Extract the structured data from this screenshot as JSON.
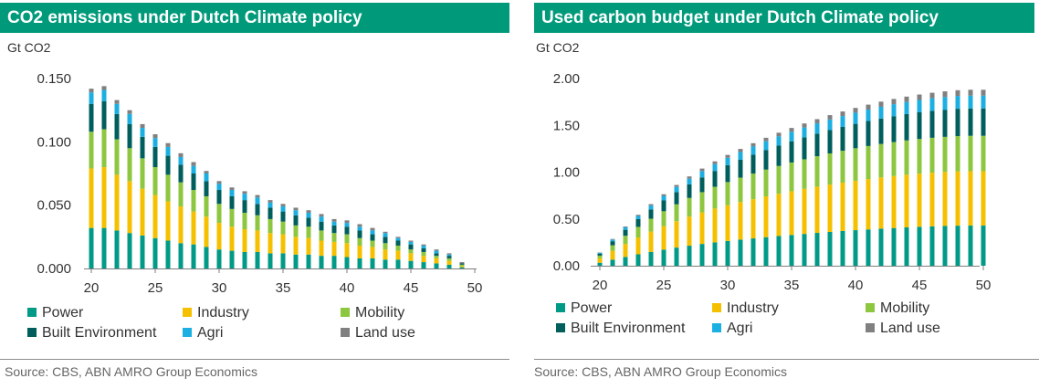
{
  "colors": {
    "title_bar": "#009A7B",
    "Power": "#009A87",
    "Industry": "#F5C000",
    "Mobility": "#8DC63F",
    "Built Environment": "#005E5D",
    "Agri": "#1CAFE2",
    "Land use": "#808080"
  },
  "panels": [
    {
      "title": "CO2 emissions under Dutch Climate policy",
      "unit": "Gt CO2",
      "source": "Source: CBS, ABN AMRO Group Economics",
      "legend": [
        "Power",
        "Industry",
        "Mobility",
        "Built Environment",
        "Agri",
        "Land use"
      ],
      "y_tick_labels": [
        "0.000",
        "0.050",
        "0.100",
        "0.150"
      ],
      "x_tick_labels": [
        "20",
        "25",
        "30",
        "35",
        "40",
        "45",
        "50"
      ]
    },
    {
      "title": "Used carbon budget under Dutch Climate policy",
      "unit": "Gt CO2",
      "source": "Source: CBS, ABN AMRO Group Economics",
      "legend": [
        "Power",
        "Industry",
        "Mobility",
        "Built Environment",
        "Agri",
        "Land use"
      ],
      "y_tick_labels": [
        "0.00",
        "0.50",
        "1.00",
        "1.50",
        "2.00"
      ],
      "x_tick_labels": [
        "20",
        "25",
        "30",
        "35",
        "40",
        "45",
        "50"
      ]
    }
  ],
  "chart_data": [
    {
      "type": "bar",
      "stacked": true,
      "title": "CO2 emissions under Dutch Climate policy",
      "ylabel": "Gt CO2",
      "ylim": [
        0,
        0.15
      ],
      "yticks": [
        0,
        0.05,
        0.1,
        0.15
      ],
      "xticks": [
        20,
        25,
        30,
        35,
        40,
        45,
        50
      ],
      "x": [
        20,
        21,
        22,
        23,
        24,
        25,
        26,
        27,
        28,
        29,
        30,
        31,
        32,
        33,
        34,
        35,
        36,
        37,
        38,
        39,
        40,
        41,
        42,
        43,
        44,
        45,
        46,
        47,
        48,
        49
      ],
      "series": [
        {
          "name": "Power",
          "values": [
            0.032,
            0.032,
            0.03,
            0.028,
            0.026,
            0.024,
            0.022,
            0.02,
            0.019,
            0.017,
            0.015,
            0.014,
            0.013,
            0.013,
            0.012,
            0.012,
            0.011,
            0.011,
            0.01,
            0.01,
            0.009,
            0.008,
            0.008,
            0.007,
            0.007,
            0.006,
            0.005,
            0.004,
            0.003,
            0.001
          ]
        },
        {
          "name": "Industry",
          "values": [
            0.047,
            0.048,
            0.044,
            0.041,
            0.037,
            0.034,
            0.031,
            0.029,
            0.026,
            0.024,
            0.021,
            0.019,
            0.018,
            0.017,
            0.016,
            0.015,
            0.014,
            0.013,
            0.012,
            0.011,
            0.011,
            0.01,
            0.009,
            0.008,
            0.007,
            0.006,
            0.005,
            0.004,
            0.003,
            0.001
          ]
        },
        {
          "name": "Mobility",
          "values": [
            0.029,
            0.03,
            0.028,
            0.026,
            0.024,
            0.022,
            0.021,
            0.019,
            0.017,
            0.016,
            0.015,
            0.014,
            0.013,
            0.012,
            0.011,
            0.01,
            0.009,
            0.009,
            0.008,
            0.007,
            0.007,
            0.006,
            0.005,
            0.005,
            0.004,
            0.003,
            0.003,
            0.002,
            0.002,
            0.001
          ]
        },
        {
          "name": "Built Environment",
          "values": [
            0.022,
            0.022,
            0.02,
            0.019,
            0.017,
            0.016,
            0.015,
            0.014,
            0.013,
            0.012,
            0.011,
            0.01,
            0.01,
            0.009,
            0.009,
            0.008,
            0.008,
            0.007,
            0.007,
            0.006,
            0.006,
            0.006,
            0.005,
            0.005,
            0.004,
            0.004,
            0.003,
            0.002,
            0.002,
            0.001
          ]
        },
        {
          "name": "Agri",
          "values": [
            0.009,
            0.009,
            0.008,
            0.008,
            0.007,
            0.007,
            0.007,
            0.006,
            0.006,
            0.006,
            0.005,
            0.005,
            0.005,
            0.005,
            0.004,
            0.004,
            0.004,
            0.004,
            0.004,
            0.003,
            0.003,
            0.003,
            0.003,
            0.003,
            0.002,
            0.002,
            0.002,
            0.002,
            0.001,
            0.0
          ]
        },
        {
          "name": "Land use",
          "values": [
            0.003,
            0.003,
            0.003,
            0.003,
            0.003,
            0.003,
            0.003,
            0.003,
            0.003,
            0.002,
            0.002,
            0.002,
            0.002,
            0.002,
            0.002,
            0.002,
            0.002,
            0.002,
            0.002,
            0.002,
            0.002,
            0.002,
            0.002,
            0.001,
            0.001,
            0.001,
            0.001,
            0.001,
            0.001,
            0.001
          ]
        }
      ],
      "legend_position": "bottom"
    },
    {
      "type": "bar",
      "stacked": true,
      "title": "Used carbon budget under Dutch Climate policy",
      "ylabel": "Gt CO2",
      "ylim": [
        0,
        2.0
      ],
      "yticks": [
        0,
        0.5,
        1.0,
        1.5,
        2.0
      ],
      "xticks": [
        20,
        25,
        30,
        35,
        40,
        45,
        50
      ],
      "x": [
        20,
        21,
        22,
        23,
        24,
        25,
        26,
        27,
        28,
        29,
        30,
        31,
        32,
        33,
        34,
        35,
        36,
        37,
        38,
        39,
        40,
        41,
        42,
        43,
        44,
        45,
        46,
        47,
        48,
        49,
        50
      ],
      "series": [
        {
          "name": "Power",
          "values": [
            0.032,
            0.064,
            0.094,
            0.122,
            0.148,
            0.172,
            0.194,
            0.214,
            0.233,
            0.25,
            0.265,
            0.279,
            0.292,
            0.305,
            0.317,
            0.329,
            0.34,
            0.351,
            0.361,
            0.371,
            0.38,
            0.388,
            0.396,
            0.403,
            0.41,
            0.416,
            0.421,
            0.425,
            0.428,
            0.429,
            0.429
          ]
        },
        {
          "name": "Industry",
          "values": [
            0.047,
            0.095,
            0.139,
            0.18,
            0.217,
            0.251,
            0.282,
            0.311,
            0.337,
            0.361,
            0.382,
            0.401,
            0.419,
            0.436,
            0.452,
            0.467,
            0.481,
            0.494,
            0.506,
            0.517,
            0.528,
            0.538,
            0.547,
            0.555,
            0.562,
            0.568,
            0.573,
            0.577,
            0.58,
            0.581,
            0.581
          ]
        },
        {
          "name": "Mobility",
          "values": [
            0.029,
            0.059,
            0.087,
            0.113,
            0.137,
            0.159,
            0.18,
            0.199,
            0.216,
            0.232,
            0.247,
            0.261,
            0.274,
            0.286,
            0.297,
            0.307,
            0.316,
            0.325,
            0.333,
            0.34,
            0.347,
            0.353,
            0.358,
            0.363,
            0.367,
            0.37,
            0.373,
            0.375,
            0.377,
            0.378,
            0.378
          ]
        },
        {
          "name": "Built Environment",
          "values": [
            0.022,
            0.044,
            0.064,
            0.083,
            0.1,
            0.116,
            0.131,
            0.145,
            0.158,
            0.17,
            0.181,
            0.191,
            0.201,
            0.21,
            0.219,
            0.227,
            0.235,
            0.242,
            0.249,
            0.255,
            0.261,
            0.267,
            0.272,
            0.277,
            0.281,
            0.285,
            0.288,
            0.29,
            0.292,
            0.293,
            0.293
          ]
        },
        {
          "name": "Agri",
          "values": [
            0.009,
            0.018,
            0.026,
            0.034,
            0.041,
            0.048,
            0.055,
            0.061,
            0.067,
            0.073,
            0.078,
            0.083,
            0.088,
            0.093,
            0.097,
            0.101,
            0.105,
            0.109,
            0.113,
            0.116,
            0.119,
            0.122,
            0.125,
            0.128,
            0.13,
            0.132,
            0.134,
            0.136,
            0.137,
            0.137,
            0.137
          ]
        },
        {
          "name": "Land use",
          "values": [
            0.003,
            0.006,
            0.009,
            0.012,
            0.015,
            0.018,
            0.021,
            0.024,
            0.027,
            0.029,
            0.031,
            0.033,
            0.035,
            0.037,
            0.039,
            0.041,
            0.043,
            0.045,
            0.047,
            0.049,
            0.051,
            0.053,
            0.055,
            0.056,
            0.057,
            0.058,
            0.059,
            0.06,
            0.061,
            0.062,
            0.062
          ]
        }
      ],
      "legend_position": "bottom"
    }
  ]
}
